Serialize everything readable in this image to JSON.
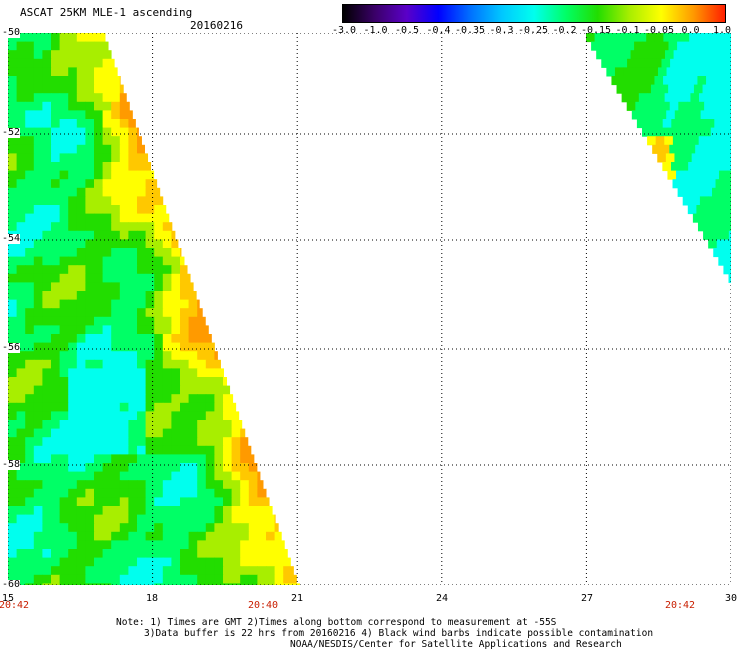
{
  "header": {
    "title": "ASCAT 25KM MLE-1 ascending",
    "date": "20160216"
  },
  "colorbar": {
    "labels": [
      "-3.0",
      "-1.0",
      "-0.5",
      "-0.4",
      "-0.35",
      "-0.3",
      "-0.25",
      "-0.2",
      "-0.15",
      "-0.1",
      "-0.05",
      "0.0",
      "1.0"
    ],
    "colors": [
      "#000000",
      "#3a0068",
      "#5a00c8",
      "#0000ff",
      "#0070ff",
      "#00c8ff",
      "#00ffee",
      "#00ff66",
      "#22dd00",
      "#a8ee00",
      "#ffff00",
      "#ff9a00",
      "#ff1e00"
    ]
  },
  "map": {
    "y_axis_labels": [
      "-50",
      "-52",
      "-54",
      "-56",
      "-58",
      "-60"
    ],
    "x_axis_labels": [
      "15",
      "18",
      "21",
      "24",
      "27",
      "30"
    ],
    "time_labels": [
      "20:42",
      "20:40",
      "20:42"
    ]
  },
  "notes": {
    "line1": "Note: 1) Times are GMT 2)Times along bottom correspond to measurement at -55S",
    "line2": "3)Data buffer is 22 hrs from 20160216 4) Black wind barbs indicate possible contamination",
    "line3": "NOAA/NESDIS/Center for Satellite Applications and Research"
  }
}
